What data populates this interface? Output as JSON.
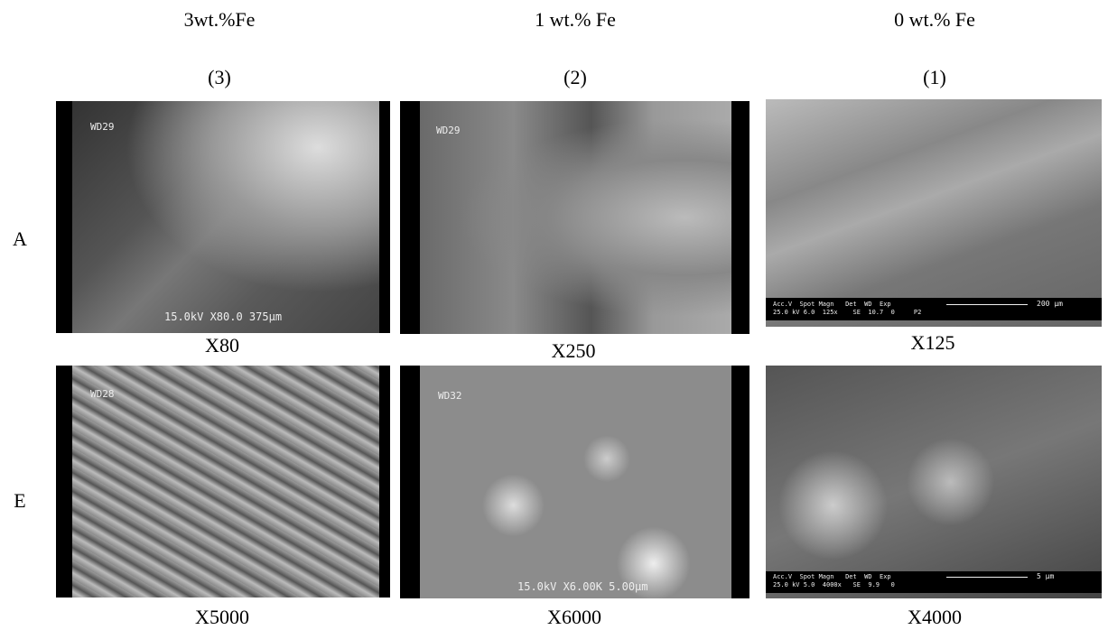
{
  "columns": [
    {
      "composition": "3wt.%Fe",
      "number": "(3)"
    },
    {
      "composition": "1 wt.% Fe",
      "number": "(2)"
    },
    {
      "composition": "0 wt.% Fe",
      "number": "(1)"
    }
  ],
  "rows": [
    {
      "label": "A",
      "panels": [
        {
          "magnification": "X80",
          "overlay": {
            "tag": "WD29",
            "bar": "15.0kV X80.0 375μm"
          }
        },
        {
          "magnification": "X250",
          "overlay": {
            "tag": "WD29"
          }
        },
        {
          "magnification": "X125",
          "overlay": {
            "header": "Acc.V  Spot Magn   Det  WD  Exp",
            "settings": "25.0 kV 6.0  125x    SE  10.7  0     P2",
            "scale": "200 μm"
          }
        }
      ]
    },
    {
      "label": "E",
      "panels": [
        {
          "magnification": "X5000",
          "overlay": {
            "tag": "WD28"
          }
        },
        {
          "magnification": "X6000",
          "overlay": {
            "tag": "WD32",
            "bar": "15.0kV X6.00K 5.00μm"
          }
        },
        {
          "magnification": "X4000",
          "overlay": {
            "header": "Acc.V  Spot Magn   Det  WD  Exp",
            "settings": "25.0 kV 5.0  4000x   SE  9.9   0",
            "scale": "5 μm"
          }
        }
      ]
    }
  ]
}
